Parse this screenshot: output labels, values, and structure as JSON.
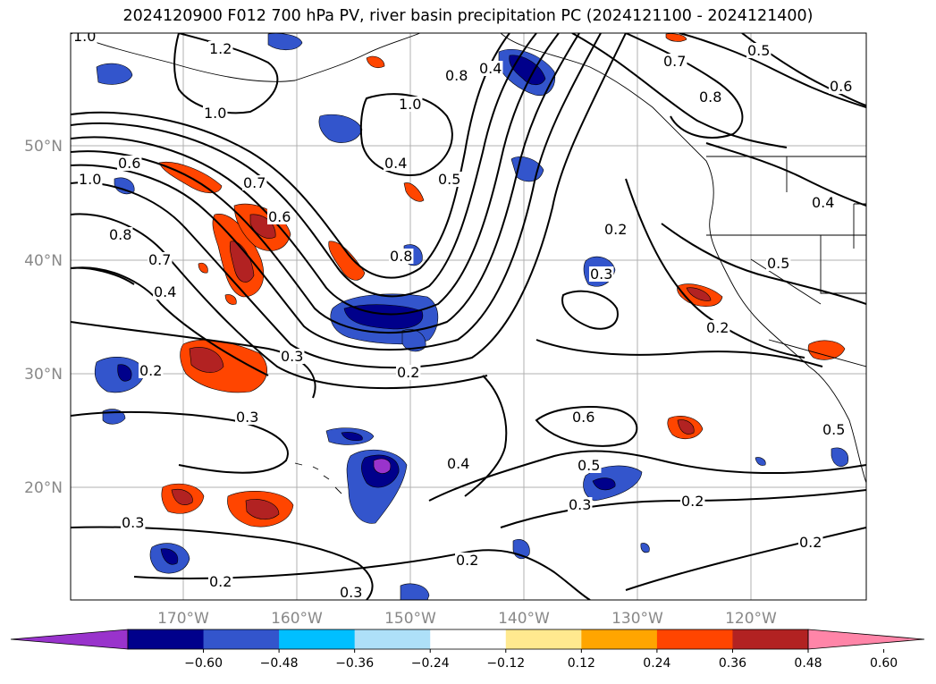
{
  "title": "2024120900 F012 700 hPa PV, river basin precipitation PC (2024121100 - 2024121400)",
  "axes": {
    "lat_labels": [
      "50°N",
      "40°N",
      "30°N",
      "20°N"
    ],
    "lon_labels": [
      "170°W",
      "160°W",
      "150°W",
      "140°W",
      "130°W",
      "120°W"
    ]
  },
  "contour_labels": [
    "1.0",
    "1.2",
    "1.0",
    "1.0",
    "0.8",
    "0.4",
    "0.7",
    "0.8",
    "0.5",
    "0.6",
    "0.6",
    "1.0",
    "0.8",
    "0.7",
    "0.4",
    "0.7",
    "0.6",
    "0.4",
    "0.5",
    "0.2",
    "0.8",
    "0.3",
    "0.4",
    "0.5",
    "0.3",
    "0.2",
    "0.2",
    "0.3",
    "0.3",
    "0.2",
    "0.6",
    "0.5",
    "0.4",
    "0.3",
    "0.2",
    "0.2",
    "0.2",
    "0.5",
    "0.2",
    "0.3"
  ],
  "colorbar": {
    "colors": [
      "#9933cc",
      "#00008b",
      "#3355cc",
      "#00bfff",
      "#aee0f8",
      "#ffffff",
      "#ffe98f",
      "#ffa500",
      "#ff4500",
      "#b22222",
      "#ff85a8"
    ],
    "ticks": [
      "−0.60",
      "−0.48",
      "−0.36",
      "−0.24",
      "−0.12",
      "0.12",
      "0.24",
      "0.36",
      "0.48",
      "0.60"
    ]
  }
}
